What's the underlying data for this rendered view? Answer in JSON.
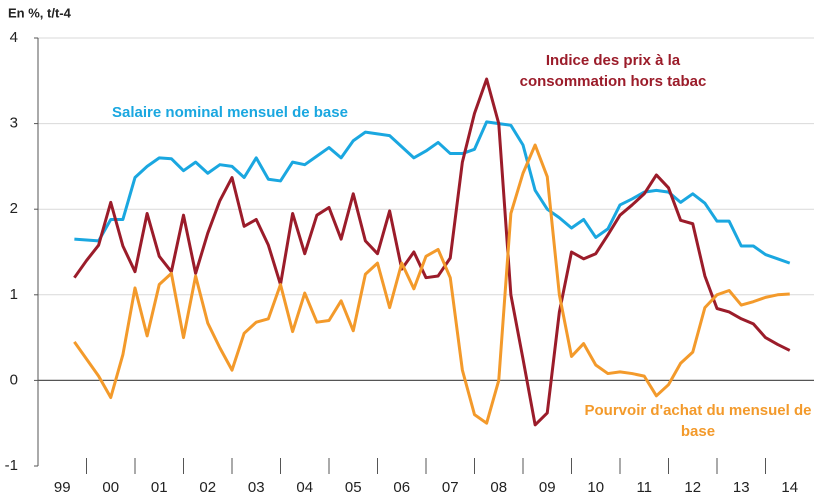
{
  "chart_data": {
    "type": "line",
    "title": "En %, t/t-4",
    "x": [
      1999.75,
      2000,
      2000.25,
      2000.5,
      2000.75,
      2001,
      2001.25,
      2001.5,
      2001.75,
      2002,
      2002.25,
      2002.5,
      2002.75,
      2003,
      2003.25,
      2003.5,
      2003.75,
      2004,
      2004.25,
      2004.5,
      2004.75,
      2005,
      2005.25,
      2005.5,
      2005.75,
      2006,
      2006.25,
      2006.5,
      2006.75,
      2007,
      2007.25,
      2007.5,
      2007.75,
      2008,
      2008.25,
      2008.5,
      2008.75,
      2009,
      2009.25,
      2009.5,
      2009.75,
      2010,
      2010.25,
      2010.5,
      2010.75,
      2011,
      2011.25,
      2011.5,
      2011.75,
      2012,
      2012.25,
      2012.5,
      2012.75,
      2013,
      2013.25,
      2013.5,
      2013.75,
      2014,
      2014.25,
      2014.5
    ],
    "series": [
      {
        "name": "Salaire nominal mensuel de base",
        "color": "#1aa7e0",
        "values": [
          1.65,
          1.64,
          1.63,
          1.88,
          1.88,
          2.37,
          2.5,
          2.6,
          2.59,
          2.45,
          2.55,
          2.42,
          2.52,
          2.5,
          2.37,
          2.6,
          2.35,
          2.33,
          2.55,
          2.52,
          2.62,
          2.72,
          2.6,
          2.8,
          2.9,
          2.88,
          2.86,
          2.73,
          2.6,
          2.68,
          2.78,
          2.65,
          2.65,
          2.7,
          3.02,
          3.0,
          2.98,
          2.75,
          2.22,
          2.0,
          1.9,
          1.78,
          1.88,
          1.67,
          1.77,
          2.05,
          2.12,
          2.2,
          2.22,
          2.2,
          2.08,
          2.18,
          2.07,
          1.86,
          1.86,
          1.57,
          1.57,
          1.47,
          1.42,
          1.37
        ]
      },
      {
        "name": "Indice des prix à la consommation hors tabac",
        "color": "#9b1c2a",
        "values": [
          1.2,
          1.4,
          1.58,
          2.08,
          1.57,
          1.27,
          1.95,
          1.45,
          1.27,
          1.93,
          1.25,
          1.72,
          2.1,
          2.37,
          1.8,
          1.88,
          1.58,
          1.12,
          1.95,
          1.48,
          1.93,
          2.02,
          1.65,
          2.18,
          1.63,
          1.48,
          1.98,
          1.3,
          1.5,
          1.2,
          1.22,
          1.43,
          2.55,
          3.12,
          3.52,
          3.0,
          1.0,
          0.25,
          -0.52,
          -0.38,
          0.8,
          1.5,
          1.42,
          1.48,
          1.7,
          1.93,
          2.05,
          2.18,
          2.4,
          2.25,
          1.87,
          1.83,
          1.22,
          0.84,
          0.8,
          0.72,
          0.66,
          0.5,
          0.42,
          0.35
        ]
      },
      {
        "name": "Pourvoir d'achat du mensuel de base",
        "color": "#f39a2b",
        "values": [
          0.45,
          0.25,
          0.05,
          -0.2,
          0.3,
          1.08,
          0.52,
          1.12,
          1.25,
          0.5,
          1.22,
          0.67,
          0.38,
          0.12,
          0.55,
          0.68,
          0.72,
          1.12,
          0.57,
          1.02,
          0.68,
          0.7,
          0.93,
          0.58,
          1.24,
          1.37,
          0.85,
          1.37,
          1.07,
          1.45,
          1.53,
          1.2,
          0.12,
          -0.4,
          -0.5,
          0.0,
          1.95,
          2.42,
          2.75,
          2.38,
          1.0,
          0.28,
          0.43,
          0.18,
          0.08,
          0.1,
          0.08,
          0.05,
          -0.18,
          -0.05,
          0.2,
          0.33,
          0.85,
          1.0,
          1.05,
          0.88,
          0.92,
          0.97,
          1.0,
          1.01
        ]
      }
    ],
    "xlim": [
      1999,
      2015
    ],
    "xticks": [
      {
        "value": 1999.5,
        "label": "99"
      },
      {
        "value": 2000.5,
        "label": "00"
      },
      {
        "value": 2001.5,
        "label": "01"
      },
      {
        "value": 2002.5,
        "label": "02"
      },
      {
        "value": 2003.5,
        "label": "03"
      },
      {
        "value": 2004.5,
        "label": "04"
      },
      {
        "value": 2005.5,
        "label": "05"
      },
      {
        "value": 2006.5,
        "label": "06"
      },
      {
        "value": 2007.5,
        "label": "07"
      },
      {
        "value": 2008.5,
        "label": "08"
      },
      {
        "value": 2009.5,
        "label": "09"
      },
      {
        "value": 2010.5,
        "label": "10"
      },
      {
        "value": 2011.5,
        "label": "11"
      },
      {
        "value": 2012.5,
        "label": "12"
      },
      {
        "value": 2013.5,
        "label": "13"
      },
      {
        "value": 2014.5,
        "label": "14"
      }
    ],
    "ylim": [
      -1,
      4
    ],
    "yticks": [
      -1,
      0,
      1,
      2,
      3,
      4
    ],
    "grid": true
  }
}
